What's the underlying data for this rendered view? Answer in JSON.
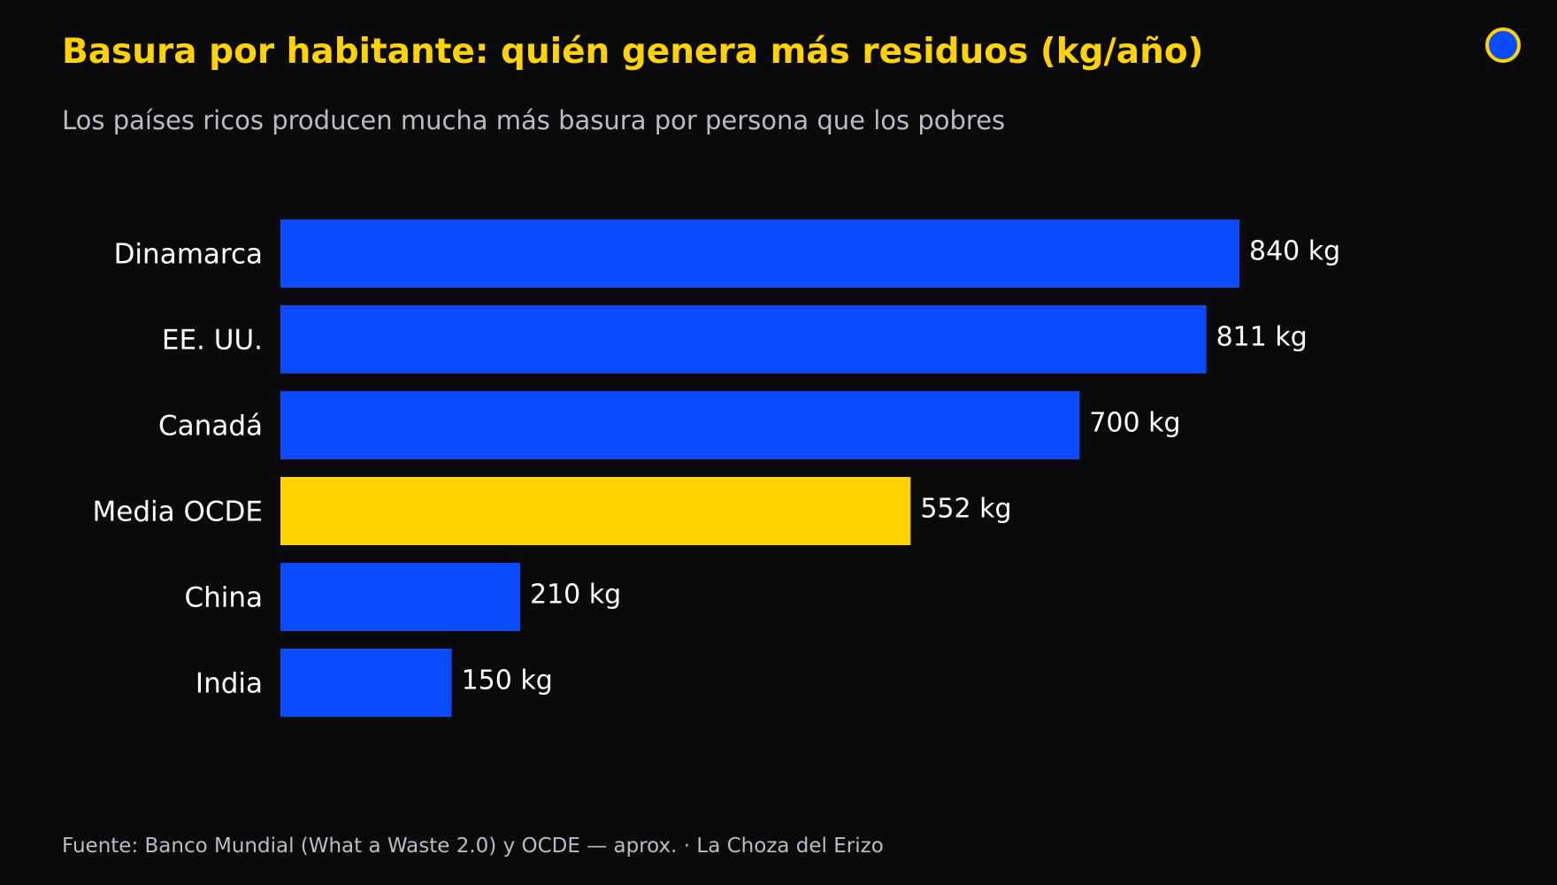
{
  "header": {
    "title": "Basura por habitante: quién genera más residuos (kg/año)",
    "subtitle": "Los países ricos producen mucha más basura por persona que los pobres"
  },
  "footer": {
    "source": "Fuente: Banco Mundial (What a Waste 2.0) y OCDE — aprox.  ·  La Choza del Erizo"
  },
  "colors": {
    "background": "#0a0a0a",
    "bar": "#0d4bff",
    "highlight": "#ffd200",
    "text": "#ffffff",
    "muted_text": "#b9bcc4"
  },
  "chart_data": {
    "type": "bar",
    "orientation": "horizontal",
    "title": "Basura por habitante: quién genera más residuos (kg/año)",
    "subtitle": "Los países ricos producen mucha más basura por persona que los pobres",
    "categories": [
      "Dinamarca",
      "EE. UU.",
      "Canadá",
      "Media OCDE",
      "China",
      "India"
    ],
    "values": [
      840,
      811,
      700,
      552,
      210,
      150
    ],
    "value_labels": [
      "840 kg",
      "811 kg",
      "700 kg",
      "552 kg",
      "210 kg",
      "150 kg"
    ],
    "highlight_category": "Media OCDE",
    "xlim": [
      0,
      840
    ],
    "grid": false,
    "legend": "none"
  }
}
